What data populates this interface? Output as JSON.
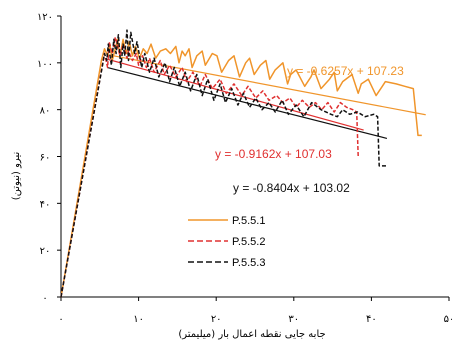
{
  "chart_data": {
    "type": "line",
    "xlabel": "جابه جایی نقطه اعمال بار (میلیمتر)",
    "ylabel": "نیرو (نیوتن)",
    "xlim": [
      0,
      50
    ],
    "ylim": [
      0,
      120
    ],
    "x_ticks": [
      0,
      10,
      20,
      30,
      40,
      50
    ],
    "y_ticks": [
      0,
      20,
      40,
      60,
      80,
      100,
      120
    ],
    "x_tick_labels": [
      "۰",
      "۱۰",
      "۲۰",
      "۳۰",
      "۴۰",
      "۵۰"
    ],
    "y_tick_labels": [
      "۰",
      "۲۰",
      "۴۰",
      "۶۰",
      "۸۰",
      "۱۰۰",
      "۱۲۰"
    ],
    "grid": false,
    "legend_position": "bottom-center",
    "series": [
      {
        "name": "P.5.5.1",
        "color": "#f0952b",
        "style": "solid",
        "x": [
          0,
          5.2,
          5.6,
          6.0,
          6.3,
          6.6,
          7.0,
          7.3,
          7.6,
          8.0,
          8.4,
          8.8,
          9.2,
          9.6,
          10.1,
          10.6,
          11.1,
          11.6,
          12.2,
          12.8,
          13.5,
          14.1,
          14.8,
          15.2,
          15.6,
          16.0,
          16.5,
          16.9,
          17.5,
          18.2,
          18.6,
          19.5,
          20.1,
          20.7,
          21.6,
          22.3,
          23.0,
          23.8,
          24.3,
          24.9,
          25.7,
          26.4,
          26.9,
          27.6,
          28.6,
          29.2,
          29.6,
          30.3,
          31.4,
          32.2,
          32.6,
          33.5,
          34.6,
          35.2,
          35.6,
          36.3,
          37.5,
          38.3,
          38.7,
          39.6,
          40.6,
          41.4,
          41.8,
          43.2,
          44.3,
          45.4,
          46.0,
          46.5
        ],
        "y": [
          0,
          101,
          106,
          103,
          108,
          101,
          106,
          110,
          103,
          110,
          104,
          109,
          103,
          107,
          102,
          106,
          104,
          108,
          102,
          105,
          106,
          104,
          107,
          100,
          105,
          103,
          106,
          98,
          103,
          105,
          99,
          104,
          103,
          96,
          101,
          103,
          94,
          100,
          102,
          95,
          99,
          101,
          93,
          97,
          100,
          91,
          95,
          97,
          90,
          94,
          97,
          89,
          93,
          96,
          88,
          92,
          95,
          87,
          91,
          93,
          86,
          90,
          92,
          91,
          90,
          89,
          69,
          69
        ]
      },
      {
        "name": "P.5.5.2",
        "color": "#e03030",
        "style": "dashed",
        "x": [
          0,
          5.6,
          6.0,
          6.2,
          6.6,
          7.0,
          7.3,
          7.6,
          8.0,
          8.5,
          8.7,
          9.2,
          9.7,
          10.0,
          10.5,
          11.0,
          11.4,
          12.0,
          12.8,
          13.3,
          14.0,
          14.8,
          15.6,
          16.2,
          17.0,
          17.9,
          18.6,
          19.5,
          20.5,
          21.3,
          22.3,
          23.3,
          24.1,
          25.1,
          26.0,
          26.8,
          27.8,
          28.6,
          29.5,
          30.3,
          31.1,
          32.0,
          32.8,
          33.6,
          34.4,
          35.2,
          36.0,
          36.8,
          37.6,
          38.1,
          38.3,
          38.4
        ],
        "y": [
          0,
          104,
          98,
          109,
          104,
          111,
          107,
          103,
          108,
          102,
          105,
          101,
          104,
          99,
          103,
          98,
          102,
          96,
          101,
          95,
          99,
          94,
          98,
          92,
          96,
          90,
          95,
          89,
          93,
          87,
          91,
          86,
          90,
          85,
          88,
          84,
          86,
          83,
          85,
          81,
          84,
          81,
          83,
          80,
          83,
          79,
          83,
          81,
          80,
          79,
          60,
          60
        ]
      },
      {
        "name": "P.5.5.3",
        "color": "#111111",
        "style": "dashed",
        "x": [
          0,
          5.3,
          5.6,
          5.9,
          6.1,
          6.5,
          6.8,
          7.1,
          7.4,
          7.7,
          8.0,
          8.2,
          8.5,
          8.7,
          9.0,
          9.5,
          9.8,
          10.4,
          10.8,
          11.4,
          12.0,
          12.6,
          13.4,
          14.0,
          14.6,
          15.3,
          16.0,
          16.7,
          17.5,
          18.2,
          18.9,
          19.7,
          20.5,
          21.2,
          22.0,
          22.8,
          23.5,
          24.3,
          25.1,
          25.9,
          26.8,
          27.6,
          28.5,
          29.3,
          30.3,
          31.3,
          32.3,
          33.5,
          34.8,
          35.6,
          36.3,
          37.2,
          38.2,
          39.2,
          40.3,
          40.8,
          41.0,
          42.0
        ],
        "y": [
          0,
          98,
          104,
          101,
          108,
          99,
          110,
          104,
          112,
          98,
          108,
          103,
          114,
          101,
          113,
          104,
          109,
          98,
          104,
          96,
          102,
          94,
          100,
          92,
          98,
          90,
          96,
          88,
          95,
          86,
          93,
          84,
          91,
          83,
          89,
          82,
          87,
          81,
          85,
          80,
          83,
          79,
          84,
          78,
          82,
          77,
          83,
          80,
          78,
          77,
          80,
          78,
          79,
          77,
          78,
          77,
          56,
          56
        ]
      }
    ],
    "trendlines": [
      {
        "series": "P.5.5.1",
        "slope": -0.6257,
        "intercept": 107.23,
        "x_range": [
          6,
          47
        ],
        "color": "#f0952b",
        "label": "y = -0.6257x + 107.23"
      },
      {
        "series": "P.5.5.2",
        "slope": -0.9162,
        "intercept": 107.03,
        "x_range": [
          6,
          39
        ],
        "color": "#e03030",
        "label": "y = -0.9162x + 107.03"
      },
      {
        "series": "P.5.5.3",
        "slope": -0.8404,
        "intercept": 103.02,
        "x_range": [
          6,
          42
        ],
        "color": "#111111",
        "label": "y = -0.8404x + 103.02"
      }
    ]
  }
}
